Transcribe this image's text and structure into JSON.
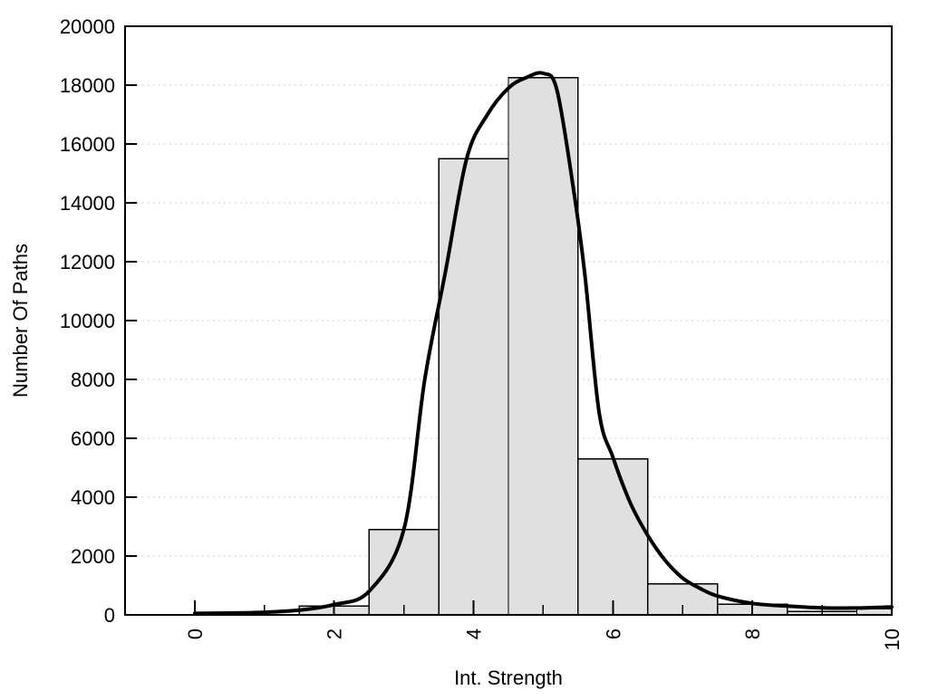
{
  "chart_data": {
    "type": "bar",
    "subtype": "histogram with fitted curve overlay",
    "title": "",
    "xlabel": "Int. Strength",
    "ylabel": "Number Of Paths",
    "xlim": [
      -1,
      10
    ],
    "ylim": [
      0,
      20000
    ],
    "grid": "horizontal dotted gridlines at every y tick, no vertical gridlines",
    "legend": "none",
    "x_ticks_major": [
      0,
      2,
      4,
      6,
      8,
      10
    ],
    "x_ticks_minor": [
      1,
      3,
      5,
      7,
      9
    ],
    "x_tick_labels": [
      "0",
      "2",
      "4",
      "6",
      "8",
      "10"
    ],
    "x_tick_label_rotation_deg": -90,
    "y_ticks": [
      0,
      2000,
      4000,
      6000,
      8000,
      10000,
      12000,
      14000,
      16000,
      18000,
      20000
    ],
    "y_tick_labels": [
      "0",
      "2000",
      "4000",
      "6000",
      "8000",
      "10000",
      "12000",
      "14000",
      "16000",
      "18000",
      "20000"
    ],
    "bars": {
      "bin_width": 1,
      "centers": [
        2,
        3,
        4,
        5,
        6,
        7,
        8,
        9,
        10
      ],
      "values": [
        300,
        2900,
        15500,
        18250,
        5300,
        1050,
        360,
        120,
        200
      ],
      "note": "last bin clipped at x = 10 (right plot edge)"
    },
    "curve": {
      "name": "fitted-distribution-curve",
      "points": [
        [
          0,
          50
        ],
        [
          0.5,
          62
        ],
        [
          1,
          90
        ],
        [
          1.5,
          160
        ],
        [
          2,
          350
        ],
        [
          2.5,
          800
        ],
        [
          3,
          2900
        ],
        [
          3.3,
          8000
        ],
        [
          3.6,
          11700
        ],
        [
          3.9,
          15500
        ],
        [
          4.2,
          17000
        ],
        [
          4.5,
          17900
        ],
        [
          4.75,
          18250
        ],
        [
          5.0,
          18400
        ],
        [
          5.2,
          17800
        ],
        [
          5.45,
          14200
        ],
        [
          5.6,
          11500
        ],
        [
          5.8,
          6900
        ],
        [
          6.0,
          5350
        ],
        [
          6.25,
          3800
        ],
        [
          6.5,
          2700
        ],
        [
          6.75,
          1850
        ],
        [
          7.0,
          1250
        ],
        [
          7.25,
          900
        ],
        [
          7.5,
          640
        ],
        [
          8.0,
          390
        ],
        [
          8.5,
          300
        ],
        [
          9.0,
          240
        ],
        [
          9.5,
          235
        ],
        [
          10,
          270
        ]
      ]
    },
    "colors": {
      "bar_fill": "#e0e0e0",
      "bar_stroke": "#000000",
      "curve": "#000000",
      "grid": "#bfbfbf",
      "border": "#000000",
      "background": "#ffffff",
      "text": "#000000"
    }
  }
}
